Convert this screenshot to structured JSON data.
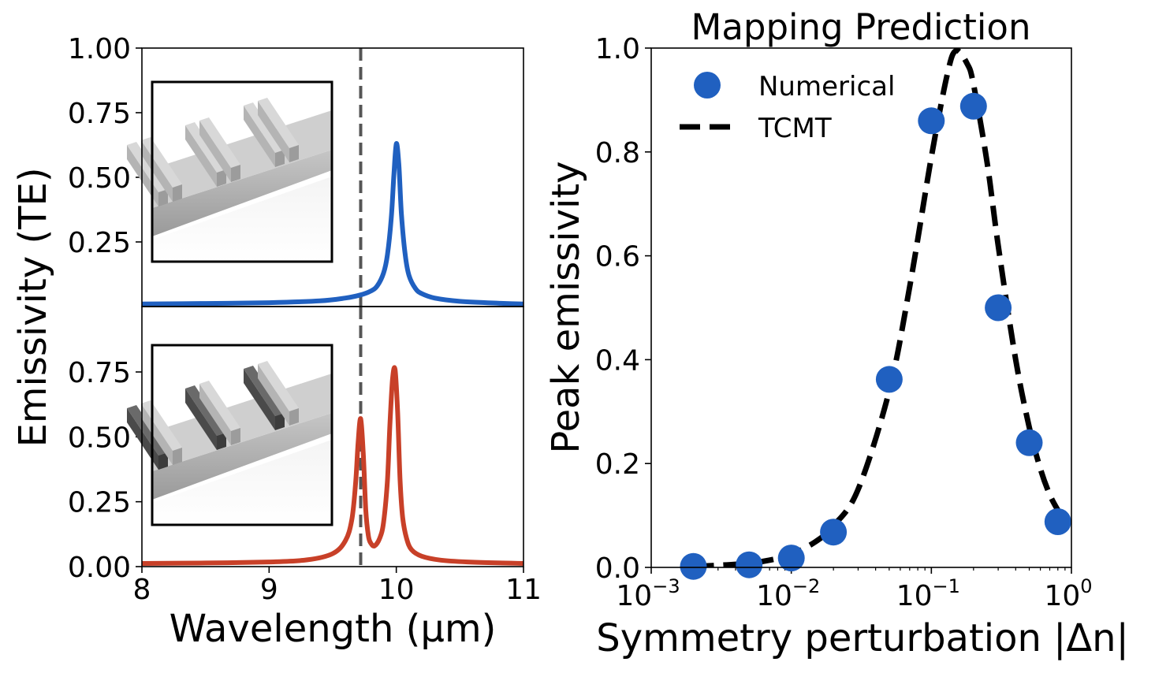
{
  "chart_data": [
    {
      "type": "line",
      "panel": "top-left",
      "title": "",
      "xlabel": "Wavelength (μm)",
      "ylabel": "Emissivity (TE)",
      "xlim": [
        8,
        11
      ],
      "ylim": [
        0,
        1.0
      ],
      "y_ticks": [
        "0.25",
        "0.50",
        "0.75",
        "1.00"
      ],
      "marker_line_x": 9.72,
      "inset_image": "grating-structure-symmetric",
      "series": [
        {
          "color": "#2060c0",
          "x": [
            8.0,
            8.5,
            9.0,
            9.4,
            9.6,
            9.72,
            9.8,
            9.85,
            9.9,
            9.93,
            9.96,
            9.98,
            10.0,
            10.02,
            10.04,
            10.07,
            10.1,
            10.15,
            10.2,
            10.3,
            10.5,
            10.8,
            11.0
          ],
          "y": [
            0.01,
            0.012,
            0.015,
            0.022,
            0.033,
            0.045,
            0.06,
            0.08,
            0.13,
            0.2,
            0.34,
            0.5,
            0.63,
            0.55,
            0.36,
            0.2,
            0.12,
            0.07,
            0.05,
            0.033,
            0.02,
            0.013,
            0.01
          ]
        }
      ]
    },
    {
      "type": "line",
      "panel": "bottom-left",
      "title": "",
      "xlabel": "Wavelength (μm)",
      "ylabel": "Emissivity (TE)",
      "xlim": [
        8,
        11
      ],
      "ylim": [
        0,
        1.0
      ],
      "x_ticks": [
        "8",
        "9",
        "10",
        "11"
      ],
      "y_ticks": [
        "0.00",
        "0.25",
        "0.50",
        "0.75"
      ],
      "marker_line_x": 9.72,
      "inset_image": "grating-structure-perturbed",
      "series": [
        {
          "color": "#c84028",
          "x": [
            8.0,
            8.5,
            9.0,
            9.3,
            9.5,
            9.6,
            9.65,
            9.68,
            9.7,
            9.72,
            9.74,
            9.76,
            9.78,
            9.8,
            9.83,
            9.87,
            9.9,
            9.93,
            9.95,
            9.97,
            9.99,
            10.01,
            10.03,
            10.05,
            10.08,
            10.12,
            10.2,
            10.35,
            10.6,
            11.0
          ],
          "y": [
            0.012,
            0.014,
            0.018,
            0.026,
            0.05,
            0.1,
            0.18,
            0.32,
            0.48,
            0.57,
            0.44,
            0.22,
            0.12,
            0.09,
            0.08,
            0.11,
            0.17,
            0.33,
            0.55,
            0.72,
            0.76,
            0.6,
            0.33,
            0.19,
            0.11,
            0.065,
            0.04,
            0.025,
            0.017,
            0.012
          ]
        }
      ]
    },
    {
      "type": "scatter",
      "panel": "right",
      "title": "Mapping Prediction",
      "xlabel": "Symmetry perturbation |Δn|",
      "ylabel": "Peak emissivity",
      "xscale": "log",
      "xlim": [
        0.001,
        1
      ],
      "ylim": [
        0,
        1.0
      ],
      "y_ticks": [
        "0.0",
        "0.2",
        "0.4",
        "0.6",
        "0.8",
        "1.0"
      ],
      "x_ticks": [
        {
          "base": "10",
          "exp": "−3"
        },
        {
          "base": "10",
          "exp": "−2"
        },
        {
          "base": "10",
          "exp": "−1"
        },
        {
          "base": "10",
          "exp": "0"
        }
      ],
      "legend_position": "top-left",
      "series": [
        {
          "name": "Numerical",
          "kind": "markers",
          "color": "#2060c0",
          "x": [
            0.002,
            0.005,
            0.01,
            0.02,
            0.05,
            0.1,
            0.2,
            0.3,
            0.5,
            0.8
          ],
          "y": [
            0.002,
            0.005,
            0.018,
            0.068,
            0.362,
            0.86,
            0.888,
            0.5,
            0.24,
            0.088
          ]
        },
        {
          "name": "TCMT",
          "kind": "dashed-line",
          "color": "#000000",
          "x": [
            0.002,
            0.003,
            0.005,
            0.007,
            0.01,
            0.015,
            0.02,
            0.03,
            0.05,
            0.07,
            0.1,
            0.13,
            0.15,
            0.18,
            0.2,
            0.25,
            0.3,
            0.4,
            0.5,
            0.6,
            0.7,
            0.8
          ],
          "y": [
            0.002,
            0.004,
            0.008,
            0.014,
            0.025,
            0.05,
            0.08,
            0.15,
            0.34,
            0.54,
            0.79,
            0.95,
            0.995,
            0.97,
            0.93,
            0.78,
            0.62,
            0.4,
            0.27,
            0.19,
            0.14,
            0.11
          ]
        }
      ]
    }
  ]
}
